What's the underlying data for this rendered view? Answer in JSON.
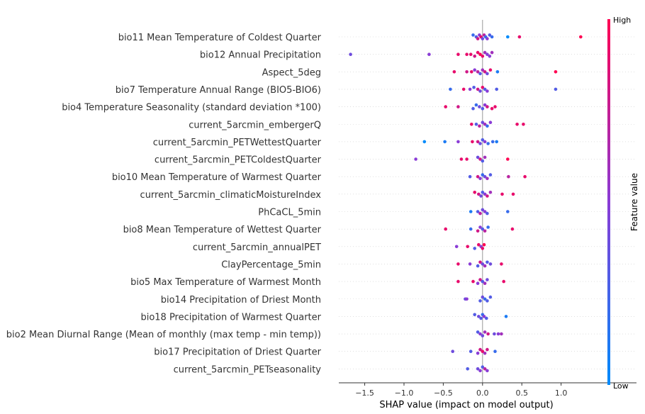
{
  "chart_data": {
    "type": "scatter",
    "subtype": "shap-beeswarm",
    "title": "",
    "xlabel": "SHAP value (impact on model output)",
    "xlim": [
      -1.83,
      1.96
    ],
    "xticks": [
      -1.5,
      -1.0,
      -0.5,
      0.0,
      0.5,
      1.0
    ],
    "xtick_labels": [
      "−1.5",
      "−1.0",
      "−0.5",
      "0.0",
      "0.5",
      "1.0"
    ],
    "colorbar": {
      "title": "Feature value",
      "high_label": "High",
      "low_label": "Low",
      "high_color": "#ff0052",
      "low_color": "#008bfb"
    },
    "features": [
      {
        "name": "bio11 Mean Temperature of Coldest Quarter",
        "x": [
          -0.12,
          -0.08,
          -0.06,
          -0.04,
          -0.02,
          0.0,
          0.02,
          0.04,
          0.06,
          0.09,
          0.12,
          0.32,
          0.47,
          1.25
        ],
        "c": [
          0.2,
          0.3,
          0.8,
          0.5,
          0.9,
          0.4,
          0.7,
          0.2,
          0.5,
          0.3,
          0.2,
          0.0,
          0.9,
          1.0
        ]
      },
      {
        "name": "bio12 Annual Precipitation",
        "x": [
          -1.68,
          -0.68,
          -0.31,
          -0.2,
          -0.15,
          -0.1,
          -0.06,
          -0.03,
          0.0,
          0.03,
          0.06,
          0.09,
          0.12
        ],
        "c": [
          0.4,
          0.5,
          0.9,
          0.9,
          0.9,
          0.8,
          0.9,
          1.0,
          0.9,
          0.6,
          0.5,
          0.5,
          0.6
        ]
      },
      {
        "name": "Aspect_5deg",
        "x": [
          -0.36,
          -0.2,
          -0.14,
          -0.1,
          -0.06,
          -0.03,
          0.0,
          0.03,
          0.06,
          0.1,
          0.19,
          0.93
        ],
        "c": [
          0.9,
          0.8,
          0.9,
          0.5,
          0.7,
          0.3,
          0.6,
          0.8,
          0.4,
          0.9,
          0.1,
          1.0
        ]
      },
      {
        "name": "bio7 Temperature Annual Range (BIO5-BIO6)",
        "x": [
          -0.41,
          -0.24,
          -0.16,
          -0.11,
          -0.06,
          -0.03,
          0.0,
          0.03,
          0.06,
          0.18,
          0.93
        ],
        "c": [
          0.2,
          0.9,
          0.5,
          0.3,
          0.8,
          0.4,
          0.9,
          0.3,
          0.5,
          0.3,
          0.3
        ]
      },
      {
        "name": "bio4 Temperature Seasonality (standard deviation *100)",
        "x": [
          -0.47,
          -0.31,
          -0.12,
          -0.08,
          -0.04,
          0.0,
          0.03,
          0.06,
          0.12,
          0.16
        ],
        "c": [
          0.9,
          0.8,
          0.3,
          0.2,
          0.4,
          0.3,
          0.5,
          0.8,
          0.9,
          0.9
        ]
      },
      {
        "name": "current_5arcmin_embergerQ",
        "x": [
          -0.14,
          -0.08,
          -0.04,
          0.0,
          0.03,
          0.06,
          0.1,
          0.44,
          0.52
        ],
        "c": [
          0.9,
          0.3,
          0.7,
          0.4,
          0.6,
          0.2,
          0.5,
          0.9,
          0.9
        ]
      },
      {
        "name": "current_5arcmin_PETWettestQuarter",
        "x": [
          -0.74,
          -0.48,
          -0.31,
          -0.13,
          -0.06,
          -0.03,
          0.0,
          0.03,
          0.07,
          0.13,
          0.18
        ],
        "c": [
          0.0,
          0.1,
          0.5,
          0.9,
          0.8,
          0.4,
          0.3,
          0.5,
          0.2,
          0.2,
          0.1
        ]
      },
      {
        "name": "current_5arcmin_PETColdestQuarter",
        "x": [
          -0.85,
          -0.27,
          -0.2,
          -0.06,
          -0.03,
          0.0,
          0.03,
          0.32
        ],
        "c": [
          0.5,
          0.9,
          0.9,
          0.4,
          0.8,
          0.3,
          0.6,
          1.0
        ]
      },
      {
        "name": "bio10 Mean Temperature of Warmest Quarter",
        "x": [
          -0.16,
          -0.06,
          -0.03,
          0.0,
          0.03,
          0.06,
          0.1,
          0.33,
          0.54
        ],
        "c": [
          0.3,
          0.8,
          0.5,
          0.2,
          0.4,
          0.6,
          0.3,
          0.7,
          0.9
        ]
      },
      {
        "name": "current_5arcmin_climaticMoistureIndex",
        "x": [
          -0.1,
          -0.05,
          -0.02,
          0.0,
          0.03,
          0.06,
          0.1,
          0.25,
          0.39
        ],
        "c": [
          0.9,
          0.8,
          0.4,
          0.3,
          0.5,
          0.8,
          0.6,
          0.9,
          0.9
        ]
      },
      {
        "name": "PhCaCL_5min",
        "x": [
          -0.15,
          -0.06,
          -0.03,
          0.0,
          0.03,
          0.06,
          0.32
        ],
        "c": [
          0.1,
          0.3,
          0.7,
          0.4,
          0.5,
          0.3,
          0.2
        ]
      },
      {
        "name": "bio8 Mean Temperature of Wettest Quarter",
        "x": [
          -0.47,
          -0.15,
          -0.06,
          -0.03,
          0.0,
          0.03,
          0.07,
          0.38
        ],
        "c": [
          0.9,
          0.2,
          0.8,
          0.5,
          0.3,
          0.7,
          0.2,
          0.9
        ]
      },
      {
        "name": "current_5arcmin_annualPET",
        "x": [
          -0.33,
          -0.19,
          -0.1,
          -0.05,
          -0.02,
          0.0,
          0.02
        ],
        "c": [
          0.5,
          0.9,
          0.3,
          0.9,
          0.5,
          0.9,
          1.0
        ]
      },
      {
        "name": "ClayPercentage_5min",
        "x": [
          -0.31,
          -0.16,
          -0.06,
          -0.03,
          0.0,
          0.03,
          0.06,
          0.1,
          0.24
        ],
        "c": [
          0.9,
          0.5,
          0.3,
          0.8,
          0.4,
          0.6,
          0.3,
          0.4,
          0.9
        ]
      },
      {
        "name": "bio5 Max Temperature of Warmest Month",
        "x": [
          -0.31,
          -0.12,
          -0.06,
          -0.03,
          0.0,
          0.03,
          0.06,
          0.27
        ],
        "c": [
          0.9,
          0.9,
          0.5,
          0.8,
          0.3,
          0.6,
          0.4,
          0.9
        ]
      },
      {
        "name": "bio14 Precipitation of Driest Month",
        "x": [
          -0.22,
          -0.2,
          -0.03,
          0.0,
          0.03,
          0.06,
          0.1
        ],
        "c": [
          0.4,
          0.5,
          0.3,
          0.4,
          0.2,
          0.3,
          0.3
        ]
      },
      {
        "name": "bio18 Precipitation of Warmest Quarter",
        "x": [
          -0.1,
          -0.05,
          -0.02,
          0.0,
          0.02,
          0.05,
          0.3
        ],
        "c": [
          0.3,
          0.4,
          0.3,
          0.2,
          0.5,
          0.3,
          0.1
        ]
      },
      {
        "name": "bio2 Mean Diurnal Range (Mean of monthly (max temp - min temp))",
        "x": [
          -0.06,
          -0.03,
          0.0,
          0.03,
          0.07,
          0.15,
          0.2,
          0.24
        ],
        "c": [
          0.3,
          0.5,
          0.4,
          0.6,
          0.8,
          0.4,
          0.5,
          0.6
        ]
      },
      {
        "name": "bio17 Precipitation of Driest Quarter",
        "x": [
          -0.38,
          -0.15,
          -0.06,
          -0.03,
          0.0,
          0.03,
          0.06,
          0.16
        ],
        "c": [
          0.4,
          0.3,
          0.5,
          0.8,
          0.9,
          0.6,
          0.8,
          0.2
        ]
      },
      {
        "name": "current_5arcmin_PETseasonality",
        "x": [
          -0.19,
          -0.06,
          -0.03,
          0.0,
          0.03,
          0.06
        ],
        "c": [
          0.3,
          0.4,
          0.5,
          0.3,
          0.7,
          0.5
        ]
      }
    ]
  }
}
